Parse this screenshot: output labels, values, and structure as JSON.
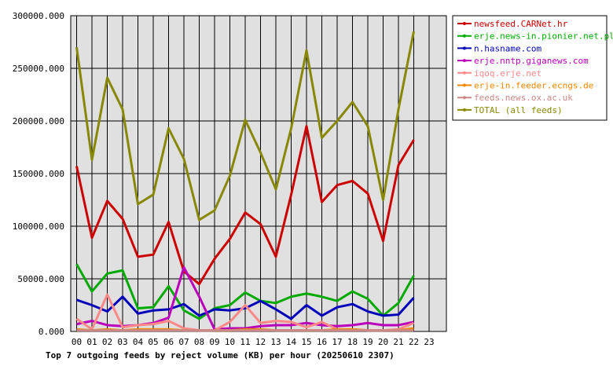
{
  "chart_data": {
    "type": "line",
    "title": "Top 7 outgoing feeds by reject volume (KB) per hour (20250610 2307)",
    "xlabel": "",
    "ylabel": "",
    "ylim": [
      0,
      300000
    ],
    "yticks": [
      "0.000",
      "50000.000",
      "100000.000",
      "150000.000",
      "200000.000",
      "250000.000",
      "300000.000"
    ],
    "yticks_values": [
      0,
      50000,
      100000,
      150000,
      200000,
      250000,
      300000
    ],
    "x_categories": [
      "00",
      "01",
      "02",
      "03",
      "04",
      "05",
      "06",
      "07",
      "08",
      "09",
      "10",
      "11",
      "12",
      "13",
      "14",
      "15",
      "16",
      "17",
      "18",
      "19",
      "20",
      "21",
      "22",
      "23"
    ],
    "grid": true,
    "legend_position": "right",
    "series": [
      {
        "name": "newsfeed.CARNet.hr",
        "color": "#cc0000",
        "values": [
          157000,
          89000,
          124000,
          107000,
          71000,
          73000,
          104000,
          57000,
          45000,
          69000,
          88000,
          113000,
          102000,
          71000,
          130000,
          195000,
          123000,
          139000,
          143000,
          131000,
          86000,
          158000,
          182000
        ]
      },
      {
        "name": "erje.news-in.pionier.net.pl",
        "color": "#00aa00",
        "values": [
          64000,
          38000,
          55000,
          58000,
          22000,
          23000,
          43000,
          20000,
          12000,
          22000,
          25000,
          37000,
          29000,
          27000,
          33000,
          36000,
          33000,
          29000,
          38000,
          31000,
          15000,
          27000,
          53000
        ]
      },
      {
        "name": "n.hasname.com",
        "color": "#0000bb",
        "values": [
          30000,
          25000,
          19000,
          33000,
          17000,
          20000,
          21000,
          26000,
          15000,
          21000,
          20000,
          22000,
          29000,
          21000,
          12000,
          25000,
          15000,
          23000,
          26000,
          19000,
          15000,
          16000,
          32000
        ]
      },
      {
        "name": "erje.nntp.giganews.com",
        "color": "#bb00bb",
        "values": [
          7000,
          10000,
          6000,
          5000,
          6000,
          8000,
          13000,
          61000,
          33000,
          2000,
          3000,
          3000,
          5000,
          6000,
          6000,
          8000,
          6000,
          5000,
          6000,
          8000,
          6000,
          6000,
          9000
        ]
      },
      {
        "name": "iqoq.erje.net",
        "color": "#ff8888",
        "values": [
          12000,
          2000,
          35000,
          4000,
          6000,
          7000,
          10000,
          3000,
          1000,
          1000,
          9000,
          25000,
          8000,
          10000,
          9000,
          4000,
          9000,
          2000,
          2000,
          1000,
          1000,
          2000,
          8000
        ]
      },
      {
        "name": "erje-in.feeder.ecngs.de",
        "color": "#ee8800",
        "values": [
          2000,
          1000,
          2000,
          1000,
          2000,
          2000,
          2000,
          1000,
          1000,
          1000,
          1000,
          2000,
          2000,
          1000,
          1000,
          1000,
          1000,
          2000,
          2000,
          1000,
          1000,
          1000,
          3000
        ]
      },
      {
        "name": "feeds.news.ox.ac.uk",
        "color": "#cc8888",
        "values": [
          1000,
          1000,
          1000,
          1000,
          1000,
          1000,
          1000,
          1000,
          1000,
          1000,
          1000,
          1000,
          1000,
          1000,
          1000,
          1000,
          1000,
          1000,
          1000,
          1000,
          1000,
          1000,
          1000
        ]
      },
      {
        "name": "TOTAL (all feeds)",
        "color": "#888800",
        "values": [
          270000,
          163000,
          241000,
          211000,
          121000,
          130000,
          193000,
          164000,
          106000,
          115000,
          148000,
          201000,
          170000,
          135000,
          193000,
          267000,
          184000,
          200000,
          218000,
          195000,
          125000,
          211000,
          285000
        ]
      }
    ]
  }
}
